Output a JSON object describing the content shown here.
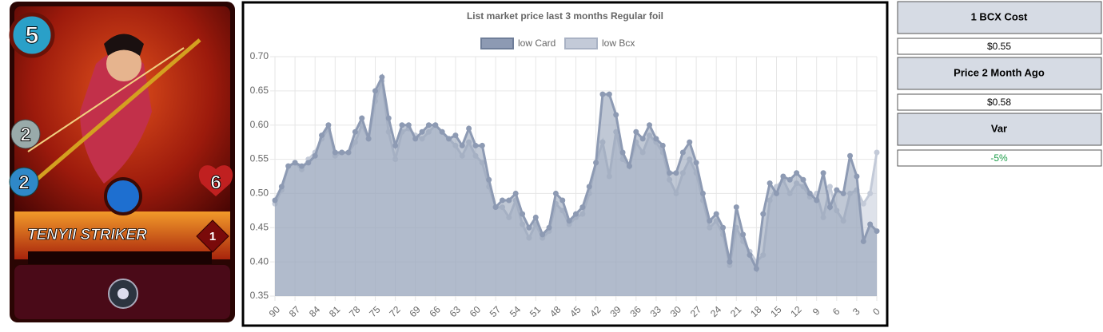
{
  "card": {
    "mana": 5,
    "attack": 2,
    "speed": 2,
    "health": 6,
    "name": "TENYII STRIKER",
    "level": 1
  },
  "chart_data": {
    "type": "line",
    "title": "List market price last 3 months Regular foil",
    "categories": [
      90,
      null,
      null,
      87,
      null,
      null,
      84,
      null,
      null,
      81,
      null,
      null,
      78,
      null,
      null,
      75,
      null,
      null,
      72,
      null,
      null,
      69,
      null,
      null,
      66,
      null,
      null,
      63,
      null,
      null,
      60,
      null,
      null,
      57,
      null,
      null,
      54,
      null,
      null,
      51,
      null,
      null,
      48,
      null,
      null,
      45,
      null,
      null,
      42,
      null,
      null,
      39,
      null,
      null,
      36,
      null,
      null,
      33,
      null,
      null,
      30,
      null,
      null,
      27,
      null,
      null,
      24,
      null,
      null,
      21,
      null,
      null,
      18,
      null,
      null,
      15,
      null,
      null,
      12,
      null,
      null,
      9,
      null,
      null,
      6,
      null,
      null,
      3,
      null,
      null,
      0
    ],
    "series": [
      {
        "name": "low Card",
        "color": "#8d9ab3",
        "values": [
          0.49,
          0.51,
          0.54,
          0.545,
          0.54,
          0.545,
          0.555,
          0.585,
          0.6,
          0.56,
          0.56,
          0.56,
          0.59,
          0.61,
          0.58,
          0.65,
          0.67,
          0.61,
          0.57,
          0.6,
          0.6,
          0.58,
          0.59,
          0.6,
          0.6,
          0.59,
          0.58,
          0.585,
          0.57,
          0.595,
          0.57,
          0.57,
          0.52,
          0.48,
          0.49,
          0.49,
          0.5,
          0.47,
          0.45,
          0.465,
          0.44,
          0.45,
          0.5,
          0.49,
          0.46,
          0.47,
          0.48,
          0.51,
          0.545,
          0.645,
          0.645,
          0.615,
          0.56,
          0.54,
          0.59,
          0.58,
          0.6,
          0.58,
          0.57,
          0.53,
          0.53,
          0.56,
          0.575,
          0.545,
          0.5,
          0.46,
          0.47,
          0.45,
          0.4,
          0.48,
          0.44,
          0.41,
          0.39,
          0.47,
          0.515,
          0.5,
          0.525,
          0.52,
          0.53,
          0.52,
          0.5,
          0.49,
          0.53,
          0.48,
          0.505,
          0.5,
          0.555,
          0.525,
          0.43,
          0.455,
          0.445
        ]
      },
      {
        "name": "low Bcx",
        "color": "#c3cad8",
        "values": [
          0.485,
          0.505,
          0.54,
          0.545,
          0.535,
          0.55,
          0.56,
          0.58,
          0.595,
          0.555,
          0.56,
          0.56,
          0.575,
          0.6,
          0.58,
          0.635,
          0.665,
          0.59,
          0.55,
          0.59,
          0.595,
          0.585,
          0.58,
          0.59,
          0.6,
          0.59,
          0.58,
          0.57,
          0.555,
          0.575,
          0.555,
          0.545,
          0.51,
          0.48,
          0.48,
          0.465,
          0.49,
          0.455,
          0.435,
          0.455,
          0.435,
          0.445,
          0.485,
          0.475,
          0.455,
          0.465,
          0.47,
          0.5,
          0.545,
          0.575,
          0.525,
          0.59,
          0.55,
          0.54,
          0.575,
          0.56,
          0.585,
          0.575,
          0.56,
          0.52,
          0.5,
          0.53,
          0.55,
          0.53,
          0.49,
          0.45,
          0.46,
          0.44,
          0.395,
          0.45,
          0.43,
          0.415,
          0.4,
          0.41,
          0.49,
          0.51,
          0.52,
          0.5,
          0.515,
          0.51,
          0.495,
          0.5,
          0.465,
          0.51,
          0.475,
          0.46,
          0.5,
          0.505,
          0.485,
          0.5,
          0.56
        ]
      }
    ],
    "ylim": [
      0.35,
      0.7
    ],
    "yticks": [
      0.35,
      {
        "value": 0.4,
        "label": "0.40"
      },
      0.45,
      {
        "value": 0.5,
        "label": "0.50"
      },
      0.55,
      {
        "value": 0.6,
        "label": "0.60"
      },
      0.65,
      {
        "value": 0.7,
        "label": "0.70"
      }
    ],
    "grid": true,
    "legend": "top"
  },
  "panel": [
    {
      "label": "1 BCX Cost",
      "value": "$0.55",
      "value_color": "#000000"
    },
    {
      "label": "Price 2 Month Ago",
      "value": "$0.58",
      "value_color": "#000000"
    },
    {
      "label": "Var",
      "value": "-5%",
      "value_color": "#1e9e4a"
    }
  ]
}
